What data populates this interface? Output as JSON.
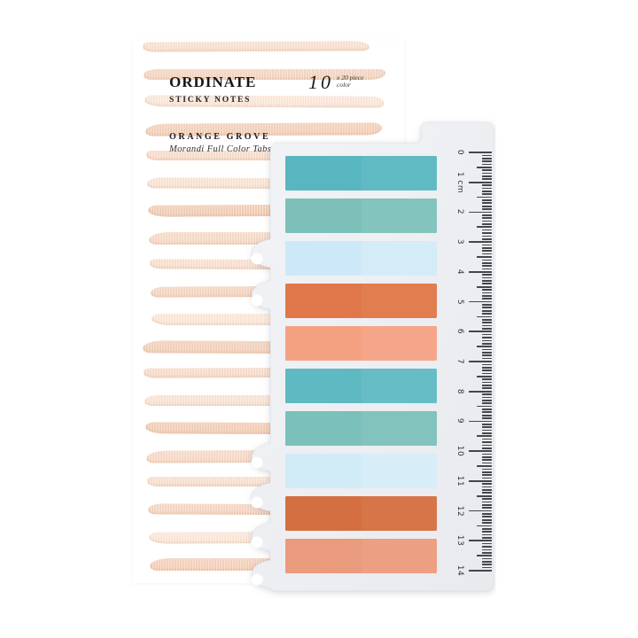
{
  "product": {
    "brand": "ORDINATE",
    "subtitle": "STICKY NOTES",
    "count": "10",
    "count_unit_lines": [
      "x 20 piece",
      "color"
    ],
    "collection": "ORANGE GROVE",
    "tagline": "Morandi Full Color Tabs"
  },
  "colors": {
    "sheet_light": "#f2f3f6",
    "sheet_dark": "#e8eaee",
    "tick": "#43464b",
    "number": "#303236",
    "stripe_palette": [
      "#f6ddcb",
      "#f2d2bd",
      "#f8e4d6",
      "#f1cdb6",
      "#f5d9c6",
      "#f7e0d0",
      "#f0cab2",
      "#f4d6c2"
    ]
  },
  "stripes": {
    "count": 20
  },
  "tabs": [
    {
      "name": "teal",
      "left": "#58b6c0",
      "right": "#60bac3"
    },
    {
      "name": "sage-teal",
      "left": "#7cc0b9",
      "right": "#83c4bd"
    },
    {
      "name": "light-blue",
      "left": "#cde9f7",
      "right": "#d4ecf8"
    },
    {
      "name": "orange",
      "left": "#e0774a",
      "right": "#e27d50"
    },
    {
      "name": "salmon",
      "left": "#f4a181",
      "right": "#f6a688"
    },
    {
      "name": "teal-2",
      "left": "#5fb9c2",
      "right": "#67bdc5"
    },
    {
      "name": "sage-teal-2",
      "left": "#7bc0ba",
      "right": "#82c3bd"
    },
    {
      "name": "light-blue-2",
      "left": "#d1ebf7",
      "right": "#d7eef9"
    },
    {
      "name": "rust-orange",
      "left": "#d36f41",
      "right": "#d67548"
    },
    {
      "name": "salmon-2",
      "left": "#ea9b7d",
      "right": "#ed9f83"
    }
  ],
  "ruler": {
    "cm_labels": [
      "0",
      "1 cm",
      "2",
      "3",
      "4",
      "5",
      "6",
      "7",
      "8",
      "9",
      "10",
      "11",
      "12",
      "13",
      "14"
    ]
  }
}
